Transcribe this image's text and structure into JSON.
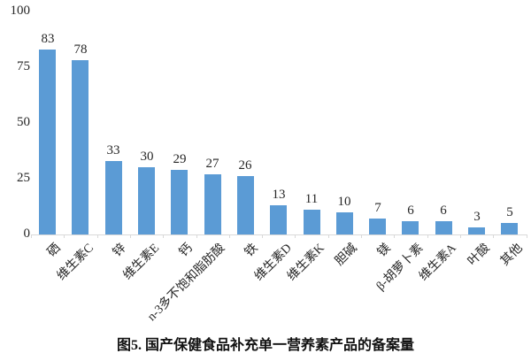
{
  "figure": {
    "caption": "图5. 国产保健食品补充单一营养素产品的备案量"
  },
  "chart_data": {
    "type": "bar",
    "title": "图5. 国产保健食品补充单一营养素产品的备案量",
    "categories": [
      "硒",
      "维生素C",
      "锌",
      "维生素E",
      "钙",
      "n-3多不饱和脂肪酸",
      "铁",
      "维生素D",
      "维生素K",
      "胆碱",
      "镁",
      "β-胡萝卜素",
      "维生素A",
      "叶酸",
      "其他"
    ],
    "values": [
      83,
      78,
      33,
      30,
      29,
      27,
      26,
      13,
      11,
      10,
      7,
      6,
      6,
      3,
      5
    ],
    "xlabel": "",
    "ylabel": "",
    "ylim": [
      0,
      100
    ],
    "yticks": [
      0,
      25,
      50,
      75,
      100
    ],
    "grid": false,
    "legend": "none",
    "data_labels_visible": true,
    "x_label_rotation_deg": 45,
    "bar_color": "#5B9BD5",
    "axis_line_color": "#D9D9D9",
    "text_color": "#262626"
  }
}
